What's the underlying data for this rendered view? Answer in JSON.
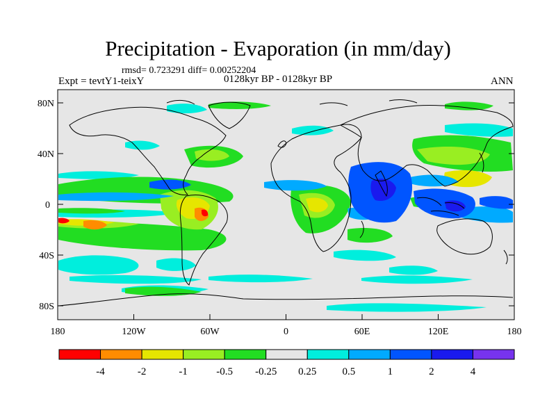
{
  "title": "Precipitation - Evaporation (in mm/day)",
  "stats": "rmsd= 0.723291 diff= 0.00252204",
  "experiment": "Expt = tevtY1-teixY",
  "period": "0128kyr BP - 0128kyr BP",
  "season": "ANN",
  "map": {
    "lat_ticks": [
      "80N",
      "40N",
      "0",
      "40S",
      "80S"
    ],
    "lon_ticks": [
      "180",
      "120W",
      "60W",
      "0",
      "60E",
      "120E",
      "180"
    ],
    "background_color": "#e6e6e6",
    "coastline_color": "#000000"
  },
  "colorbar": {
    "colors": [
      "#ff0000",
      "#ff8c00",
      "#e6e600",
      "#99ee22",
      "#22dd22",
      "#e6e6e6",
      "#00eedd",
      "#00aaff",
      "#0055ff",
      "#1a1aee",
      "#7733ee"
    ],
    "labels": [
      "-4",
      "-2",
      "-1",
      "-0.5",
      "-0.25",
      "0.25",
      "0.5",
      "1",
      "2",
      "4"
    ]
  }
}
